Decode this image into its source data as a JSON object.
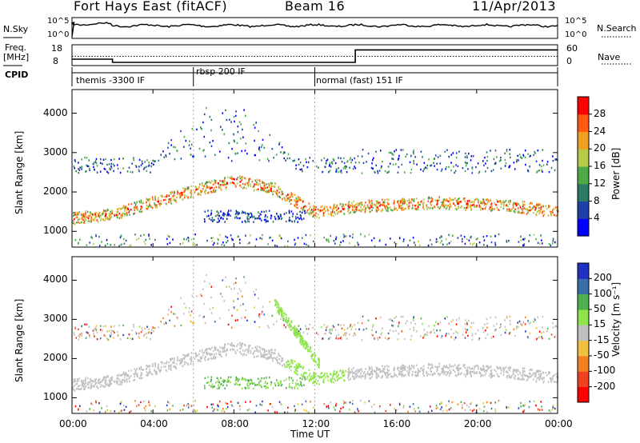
{
  "header": {
    "title": "Fort Hays East (fitACF)",
    "beam": "Beam 16",
    "date": "11/Apr/2013"
  },
  "status_panels": {
    "nsky_label": "N.Sky",
    "nsearch_label": "N.Search",
    "freq_label": "Freq.",
    "freq_unit": "[MHz]",
    "nave_label": "Nave",
    "cpid_label": "CPID",
    "nsky_ticks": [
      "10^5",
      "10^0"
    ],
    "nsearch_ticks": [
      "10^5",
      "10^0"
    ],
    "freq_ticks": [
      "18",
      "8"
    ],
    "nave_ticks": [
      "60",
      "0"
    ],
    "cpid_segments": [
      {
        "label": "themis -3300 IF",
        "start_hour": 0,
        "end_hour": 6
      },
      {
        "label": "rbsp 200 IF",
        "start_hour": 6,
        "end_hour": 12
      },
      {
        "label": "normal (fast) 151 IF",
        "start_hour": 12,
        "end_hour": 24
      }
    ],
    "freq_trace_mhz": [
      [
        0,
        11
      ],
      [
        2,
        11
      ],
      [
        2,
        9
      ],
      [
        14,
        9
      ],
      [
        14,
        16.8
      ],
      [
        24,
        16.8
      ]
    ],
    "nave_trace": [
      [
        0,
        24
      ],
      [
        24,
        24
      ]
    ]
  },
  "chart_data": [
    {
      "type": "heatmap",
      "title": "Power",
      "xlabel": "",
      "ylabel": "Slant Range [km]",
      "x_ticks": [
        "00:00",
        "04:00",
        "08:00",
        "12:00",
        "16:00",
        "20:00",
        "00:00"
      ],
      "x_range_hours": [
        0,
        24
      ],
      "y_ticks": [
        1000,
        2000,
        3000,
        4000
      ],
      "ylim": [
        600,
        4600
      ],
      "colorbar_label": "Power [dB]",
      "colorbar_ticks": [
        4,
        8,
        12,
        16,
        20,
        24,
        28
      ],
      "colorbar_colors": [
        "#0000ff",
        "#1e3fa8",
        "#2c7a64",
        "#4cab47",
        "#b5c94a",
        "#f0a020",
        "#ff5a10",
        "#ff0000"
      ],
      "dominant_band_km": [
        [
          0,
          1350
        ],
        [
          2,
          1450
        ],
        [
          6,
          2050
        ],
        [
          8,
          2300
        ],
        [
          10,
          2100
        ],
        [
          12,
          1500
        ],
        [
          14,
          1650
        ],
        [
          18,
          1750
        ],
        [
          22,
          1650
        ],
        [
          24,
          1500
        ]
      ]
    },
    {
      "type": "heatmap",
      "title": "Velocity",
      "xlabel": "Time UT",
      "ylabel": "Slant Range [km]",
      "x_ticks": [
        "00:00",
        "04:00",
        "08:00",
        "12:00",
        "16:00",
        "20:00",
        "00:00"
      ],
      "x_range_hours": [
        0,
        24
      ],
      "y_ticks": [
        1000,
        2000,
        3000,
        4000
      ],
      "ylim": [
        600,
        4600
      ],
      "colorbar_label": "Velocity [m s⁻¹]",
      "colorbar_ticks": [
        200,
        100,
        50,
        15,
        -15,
        -50,
        -100,
        -200
      ],
      "colorbar_colors": [
        "#2030c0",
        "#3a6ea8",
        "#4fb04f",
        "#8ee44a",
        "#c0c0c0",
        "#f0c040",
        "#f08020",
        "#f04020",
        "#ff0000"
      ],
      "ground_scatter_color": "#c0c0c0"
    }
  ]
}
